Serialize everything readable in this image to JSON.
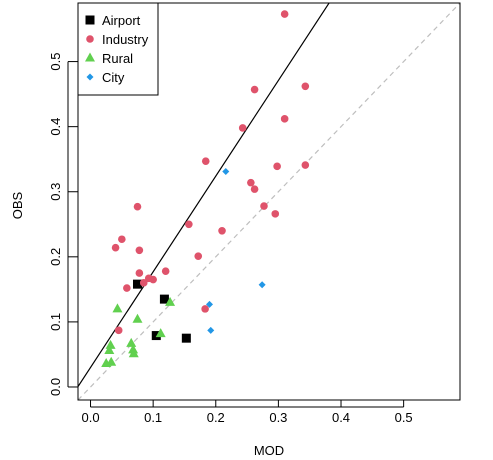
{
  "chart_data": {
    "type": "scatter",
    "xlabel": "MOD",
    "ylabel": "OBS",
    "xlim": [
      -0.02,
      0.59
    ],
    "ylim": [
      -0.02,
      0.59
    ],
    "xticks": [
      "0.0",
      "0.1",
      "0.2",
      "0.3",
      "0.4",
      "0.5"
    ],
    "yticks": [
      "0.0",
      "0.1",
      "0.2",
      "0.3",
      "0.4",
      "0.5"
    ],
    "grid": false,
    "legend_position": "top-left",
    "series": [
      {
        "name": "Airport",
        "marker": "square",
        "color": "#000000",
        "points": [
          [
            0.075,
            0.158
          ],
          [
            0.118,
            0.135
          ],
          [
            0.105,
            0.079
          ],
          [
            0.153,
            0.075
          ]
        ]
      },
      {
        "name": "Industry",
        "marker": "circle",
        "color": "#DF536B",
        "points": [
          [
            0.31,
            0.573
          ],
          [
            0.343,
            0.462
          ],
          [
            0.262,
            0.457
          ],
          [
            0.31,
            0.412
          ],
          [
            0.243,
            0.398
          ],
          [
            0.184,
            0.347
          ],
          [
            0.343,
            0.341
          ],
          [
            0.298,
            0.339
          ],
          [
            0.256,
            0.314
          ],
          [
            0.262,
            0.304
          ],
          [
            0.277,
            0.278
          ],
          [
            0.295,
            0.266
          ],
          [
            0.075,
            0.277
          ],
          [
            0.157,
            0.25
          ],
          [
            0.21,
            0.24
          ],
          [
            0.05,
            0.227
          ],
          [
            0.04,
            0.214
          ],
          [
            0.078,
            0.21
          ],
          [
            0.172,
            0.201
          ],
          [
            0.058,
            0.152
          ],
          [
            0.078,
            0.175
          ],
          [
            0.093,
            0.167
          ],
          [
            0.1,
            0.165
          ],
          [
            0.085,
            0.16
          ],
          [
            0.12,
            0.178
          ],
          [
            0.045,
            0.087
          ],
          [
            0.183,
            0.12
          ]
        ]
      },
      {
        "name": "Rural",
        "marker": "triangle",
        "color": "#61D04F",
        "points": [
          [
            0.043,
            0.12
          ],
          [
            0.075,
            0.104
          ],
          [
            0.127,
            0.13
          ],
          [
            0.032,
            0.064
          ],
          [
            0.03,
            0.056
          ],
          [
            0.065,
            0.067
          ],
          [
            0.068,
            0.057
          ],
          [
            0.069,
            0.051
          ],
          [
            0.112,
            0.082
          ],
          [
            0.025,
            0.036
          ],
          [
            0.033,
            0.038
          ]
        ]
      },
      {
        "name": "City",
        "marker": "diamond",
        "color": "#2297E6",
        "points": [
          [
            0.216,
            0.331
          ],
          [
            0.274,
            0.157
          ],
          [
            0.19,
            0.127
          ],
          [
            0.192,
            0.087
          ]
        ]
      }
    ],
    "lines": [
      {
        "name": "regression",
        "style": "solid",
        "color": "#000000",
        "intercept": 0.03,
        "slope": 1.47
      },
      {
        "name": "1:1",
        "style": "dashed",
        "color": "#BEBEBE",
        "intercept": 0.0,
        "slope": 1.0
      }
    ]
  }
}
